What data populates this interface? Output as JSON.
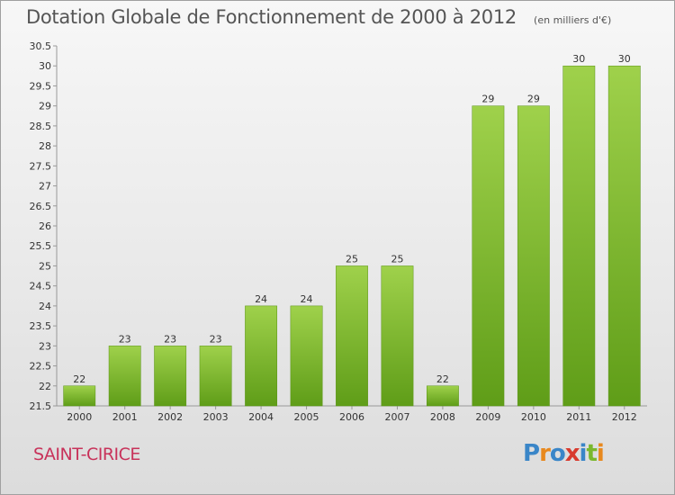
{
  "chart_data": {
    "type": "bar",
    "title": "Dotation Globale de Fonctionnement de 2000 à 2012",
    "subtitle": "(en milliers d'€)",
    "categories": [
      "2000",
      "2001",
      "2002",
      "2003",
      "2004",
      "2005",
      "2006",
      "2007",
      "2008",
      "2009",
      "2010",
      "2011",
      "2012"
    ],
    "values": [
      22,
      23,
      23,
      23,
      24,
      24,
      25,
      25,
      22,
      29,
      29,
      30,
      30
    ],
    "ylim": [
      21.5,
      30.5
    ],
    "yticks": [
      "21.5",
      "22",
      "22.5",
      "23",
      "23.5",
      "24",
      "24.5",
      "25",
      "25.5",
      "26",
      "26.5",
      "27",
      "27.5",
      "28",
      "28.5",
      "29",
      "29.5",
      "30",
      "30.5"
    ],
    "grid": false,
    "bar_color": "#7ab82e"
  },
  "footer": {
    "commune": "SAINT-CIRICE",
    "logo": [
      "P",
      "r",
      "o",
      "x",
      "i",
      "t",
      "i"
    ]
  },
  "colors": {
    "commune": "#c8325a",
    "logo": [
      "#3a86c8",
      "#e8891e",
      "#3a86c8",
      "#d83a2e",
      "#3a86c8",
      "#7ab82e",
      "#e8891e"
    ]
  }
}
